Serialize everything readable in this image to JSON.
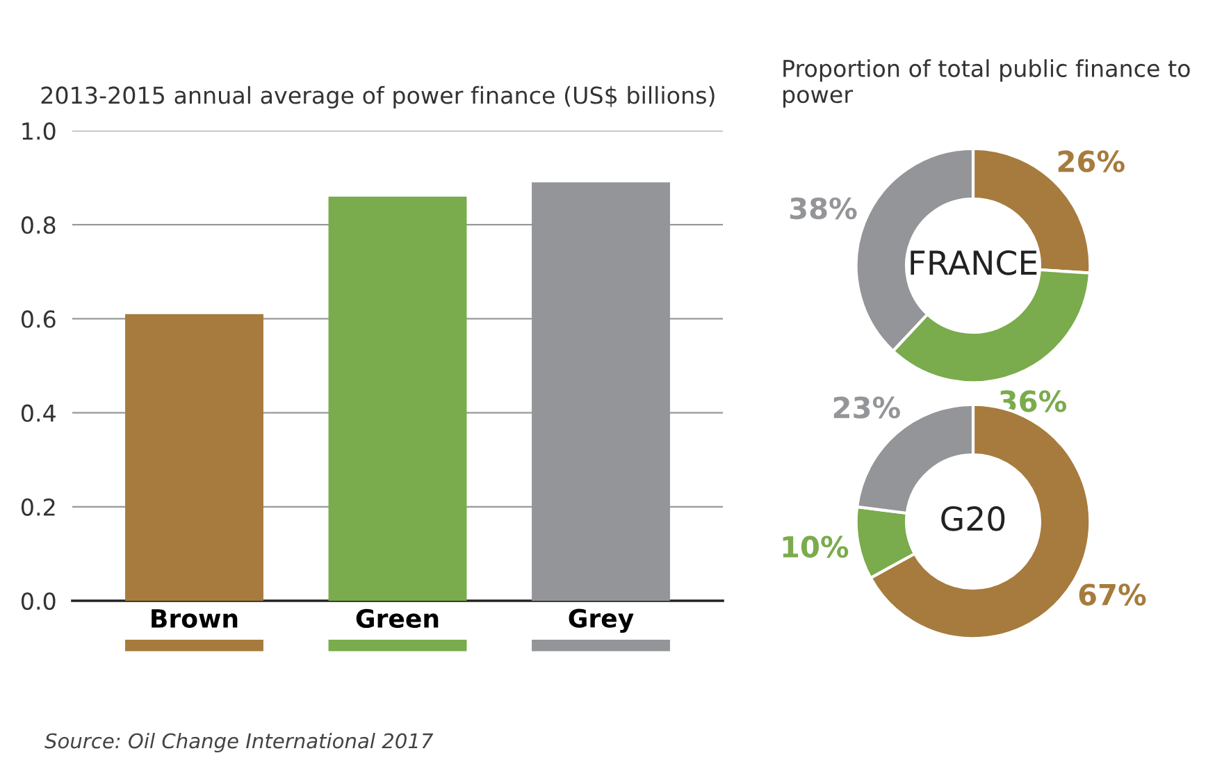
{
  "chart_data": [
    {
      "type": "bar",
      "title": "2013-2015 annual average of power finance (US$ billions)",
      "categories": [
        "Brown",
        "Green",
        "Grey"
      ],
      "values": [
        0.61,
        0.86,
        0.89
      ],
      "colors": [
        "#a67b3d",
        "#7aab4c",
        "#939598"
      ],
      "ylim": [
        0,
        1.0
      ],
      "yticks": [
        {
          "value": 0,
          "label": "0.0"
        },
        0.2,
        0.4,
        0.6,
        0.8,
        {
          "value": 1.0,
          "label": "1.0"
        }
      ],
      "grid": "y",
      "legend": false,
      "annotations": [
        "Source: Oil Change International 2017"
      ]
    },
    {
      "type": "donut",
      "title": "Proportion of total public finance to power",
      "categories": [
        null,
        null,
        null
      ],
      "values": [
        26,
        36,
        38
      ],
      "value_labels": [
        "26%",
        "36%",
        "38%"
      ],
      "colors": [
        "#a67b3d",
        "#7aab4c",
        "#939598"
      ],
      "annotations": [
        "FRANCE"
      ]
    },
    {
      "type": "donut",
      "categories": [
        null,
        null,
        null
      ],
      "values": [
        67,
        10,
        23
      ],
      "value_labels": [
        "67%",
        "10%",
        "23%"
      ],
      "colors": [
        "#a67b3d",
        "#7aab4c",
        "#939598"
      ],
      "annotations": [
        "G20"
      ]
    }
  ]
}
